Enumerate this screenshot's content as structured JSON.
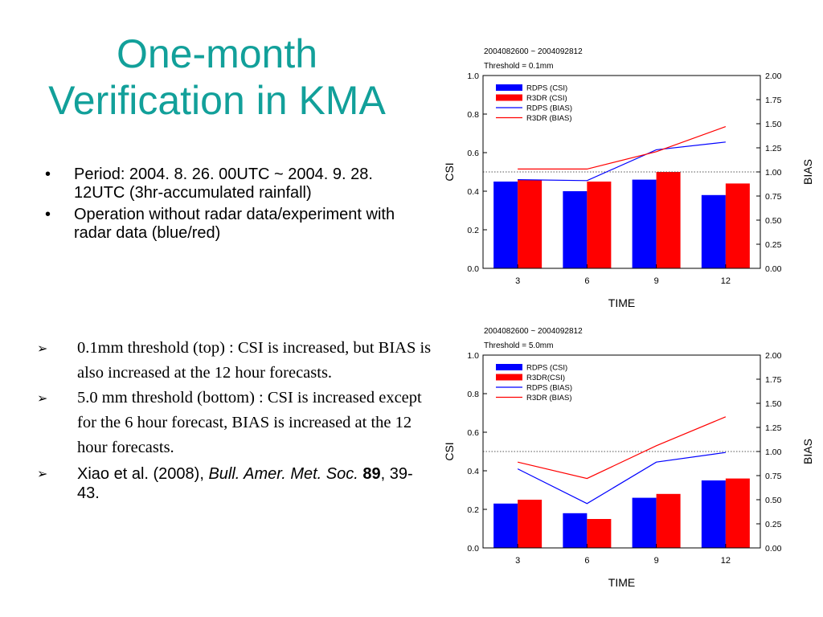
{
  "slide": {
    "title_line1": "One-month",
    "title_line2": "Verification in KMA",
    "bullets": [
      "Period: 2004. 8. 26. 00UTC ~ 2004. 9. 28. 12UTC (3hr-accumulated rainfall)",
      "Operation without radar data/experiment with radar data (blue/red)"
    ],
    "findings": [
      "0.1mm threshold (top) : CSI is increased, but BIAS is also increased at the 12 hour forecasts.",
      "5.0 mm threshold (bottom) : CSI is increased except for the 6 hour forecast, BIAS is increased at the 12 hour forecasts."
    ],
    "reference": {
      "prefix": "Xiao et al. (2008), ",
      "journal": "Bull. Amer. Met. Soc.",
      "volume": "89",
      "pages": ", 39-43."
    }
  },
  "colors": {
    "title": "#12a09a",
    "rdps": "#0000ff",
    "r3dr": "#ff0000"
  },
  "chart_data": [
    {
      "type": "bar",
      "title": "2004082600 ~ 2004092812",
      "subtitle": "Threshold = 0.1mm",
      "xlabel": "TIME",
      "ylabel": "CSI",
      "y2label": "BIAS",
      "categories": [
        "3",
        "6",
        "9",
        "12"
      ],
      "ylim": [
        0,
        1.0
      ],
      "y2lim": [
        0,
        2.0
      ],
      "yticks": [
        "0.0",
        "0.2",
        "0.4",
        "0.6",
        "0.8",
        "1.0"
      ],
      "y2ticks": [
        "0.00",
        "0.25",
        "0.50",
        "0.75",
        "1.00",
        "1.25",
        "1.50",
        "1.75",
        "2.00"
      ],
      "reference_line_y2": 1.0,
      "legend_position": "top-left",
      "series": [
        {
          "name": "RDPS (CSI)",
          "kind": "bar",
          "axis": "left",
          "color": "#0000ff",
          "values": [
            0.45,
            0.4,
            0.46,
            0.38
          ]
        },
        {
          "name": "R3DR (CSI)",
          "kind": "bar",
          "axis": "left",
          "color": "#ff0000",
          "values": [
            0.46,
            0.45,
            0.5,
            0.44
          ]
        },
        {
          "name": "RDPS (BIAS)",
          "kind": "line",
          "axis": "right",
          "color": "#0000ff",
          "values": [
            0.92,
            0.91,
            1.23,
            1.31
          ]
        },
        {
          "name": "R3DR (BIAS)",
          "kind": "line",
          "axis": "right",
          "color": "#ff0000",
          "values": [
            1.03,
            1.03,
            1.21,
            1.47
          ]
        }
      ]
    },
    {
      "type": "bar",
      "title": "2004082600 ~ 2004092812",
      "subtitle": "Threshold = 5.0mm",
      "xlabel": "TIME",
      "ylabel": "CSI",
      "y2label": "BIAS",
      "categories": [
        "3",
        "6",
        "9",
        "12"
      ],
      "ylim": [
        0,
        1.0
      ],
      "y2lim": [
        0,
        2.0
      ],
      "yticks": [
        "0.0",
        "0.2",
        "0.4",
        "0.6",
        "0.8",
        "1.0"
      ],
      "y2ticks": [
        "0.00",
        "0.25",
        "0.50",
        "0.75",
        "1.00",
        "1.25",
        "1.50",
        "1.75",
        "2.00"
      ],
      "reference_line_y2": 1.0,
      "legend_position": "top-left",
      "series": [
        {
          "name": "RDPS (CSI)",
          "kind": "bar",
          "axis": "left",
          "color": "#0000ff",
          "values": [
            0.23,
            0.18,
            0.26,
            0.35
          ]
        },
        {
          "name": "R3DR(CSI)",
          "kind": "bar",
          "axis": "left",
          "color": "#ff0000",
          "values": [
            0.25,
            0.15,
            0.28,
            0.36
          ]
        },
        {
          "name": "RDPS (BIAS)",
          "kind": "line",
          "axis": "right",
          "color": "#0000ff",
          "values": [
            0.82,
            0.46,
            0.89,
            0.99
          ]
        },
        {
          "name": "R3DR (BIAS)",
          "kind": "line",
          "axis": "right",
          "color": "#ff0000",
          "values": [
            0.89,
            0.72,
            1.06,
            1.36
          ]
        }
      ]
    }
  ]
}
